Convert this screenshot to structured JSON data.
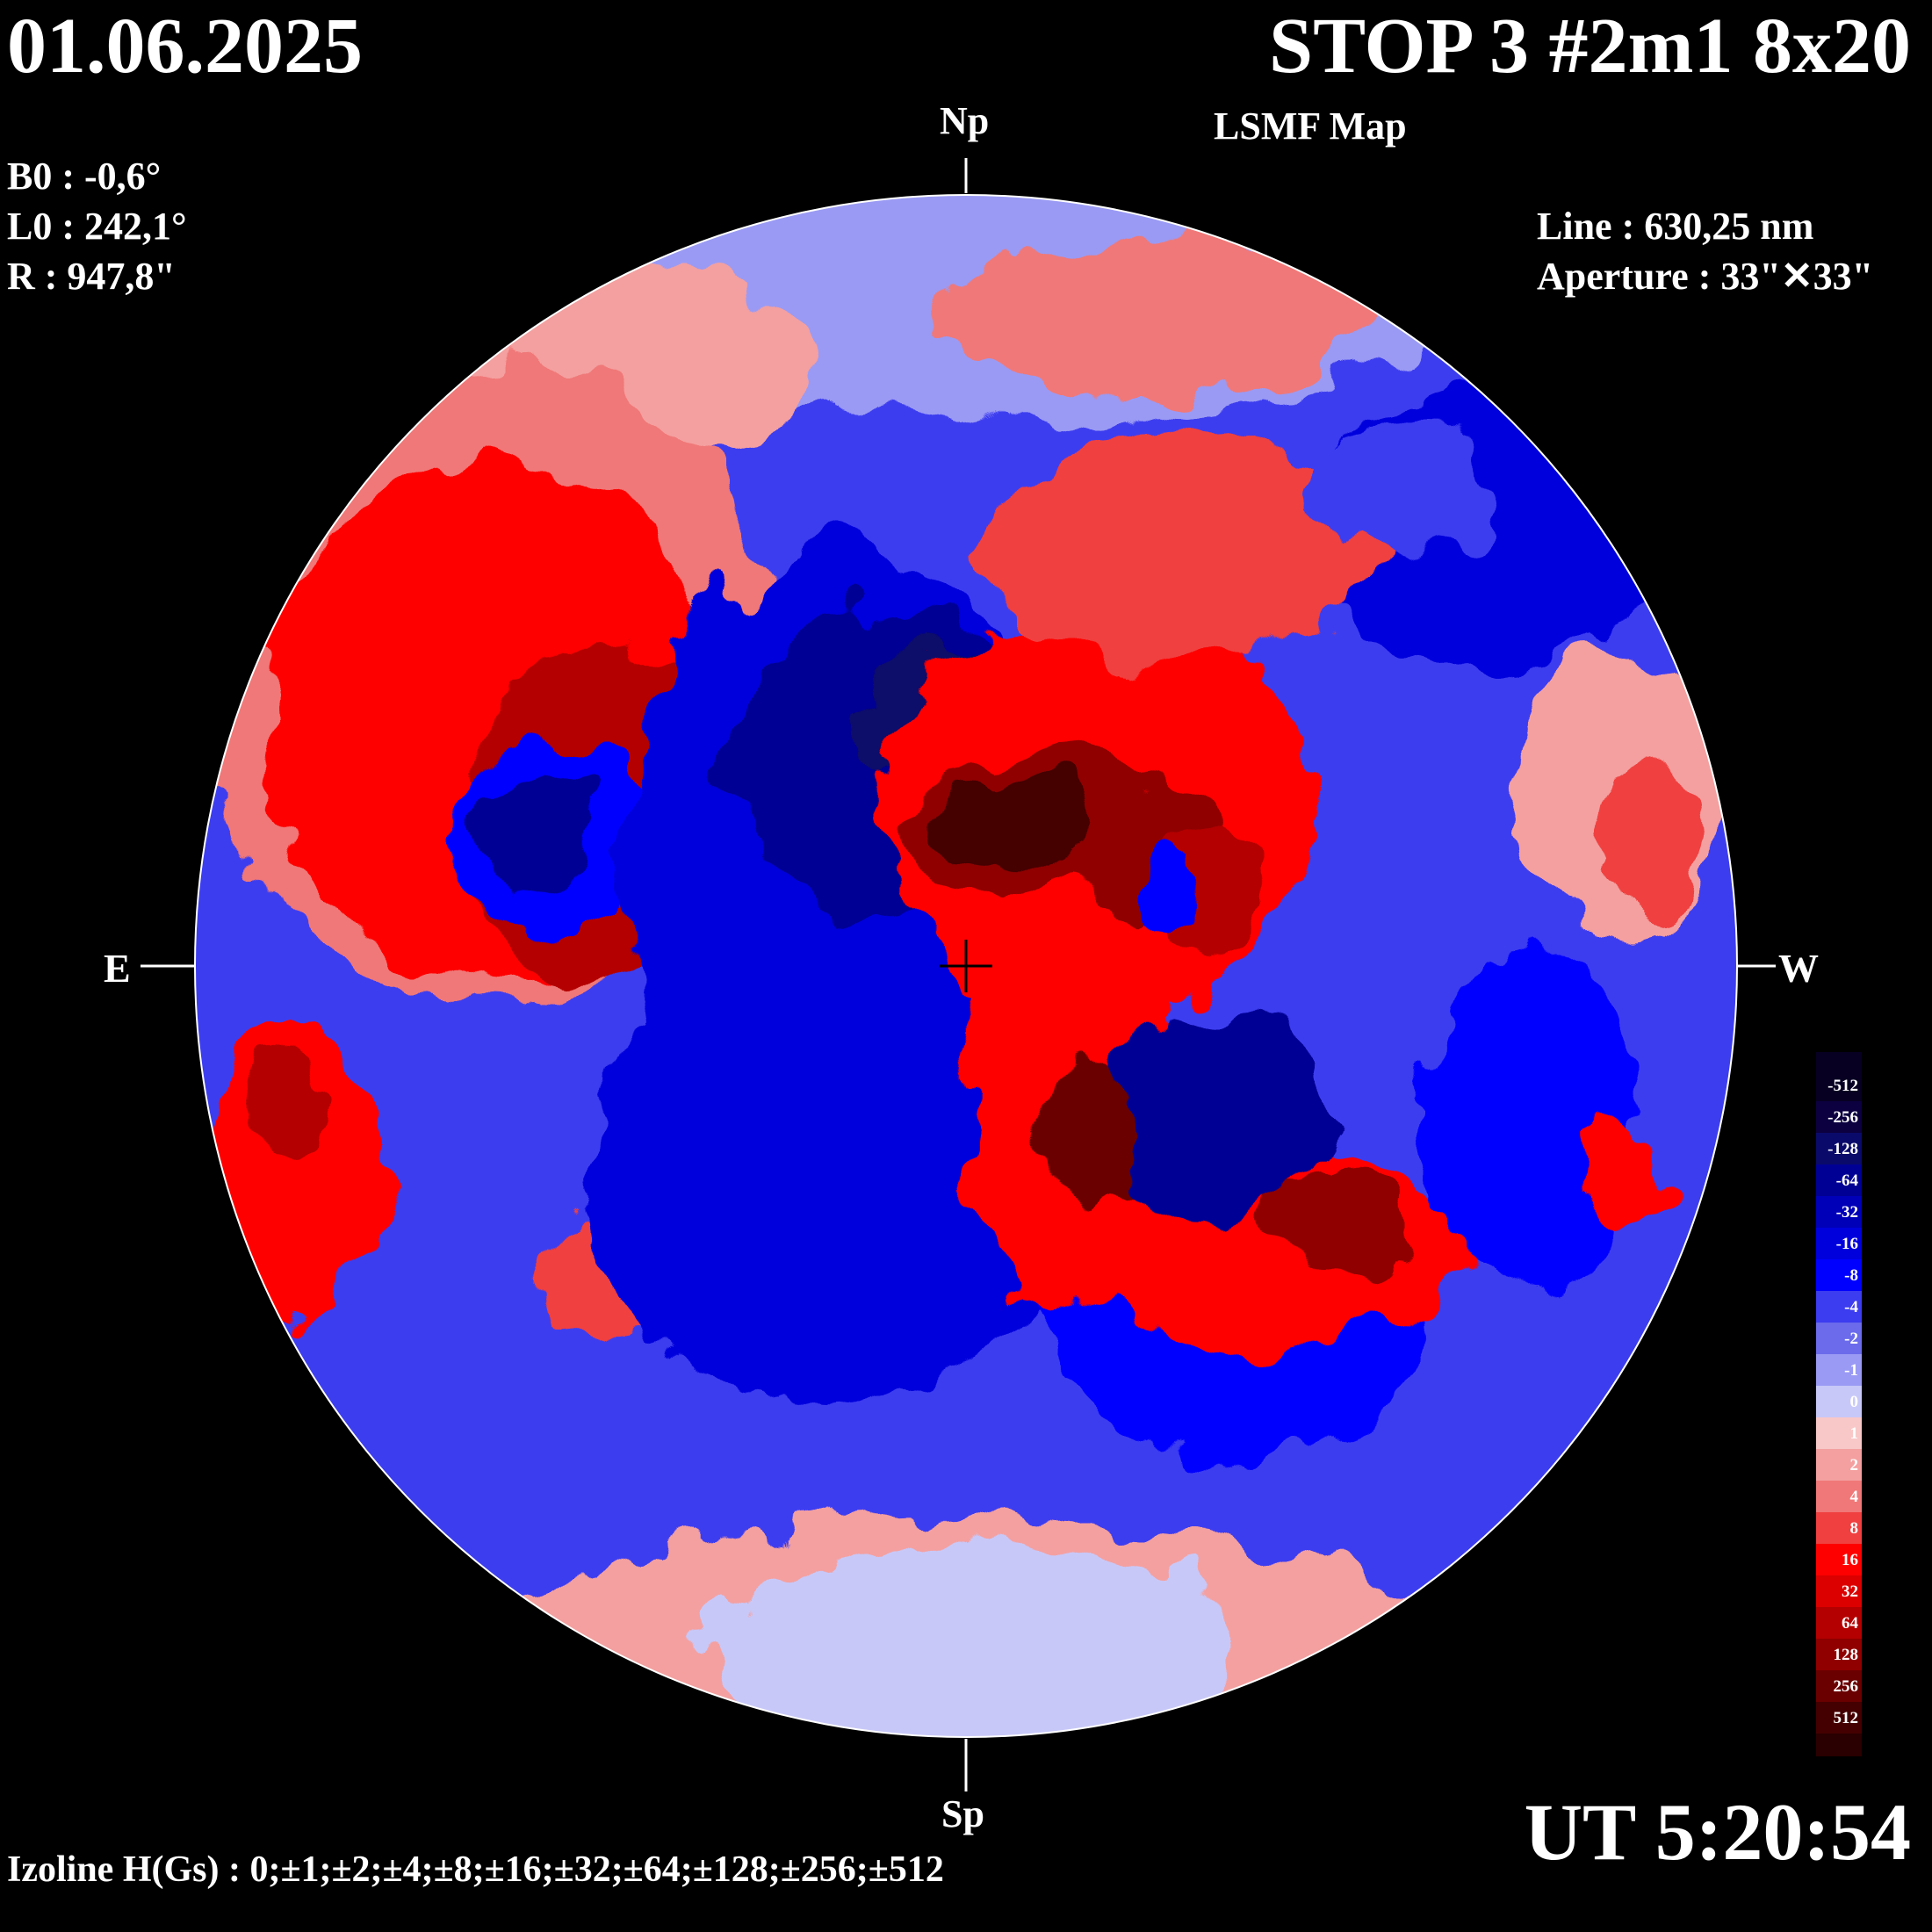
{
  "header": {
    "date": "01.06.2025",
    "title": "STOP 3 #2m1 8x20",
    "subtitle": "LSMF  Map"
  },
  "observation": {
    "b0": "B0 : -0,6°",
    "l0": "L0 : 242,1°",
    "radius": "R  : 947,8\"",
    "line": "Line :  630,25 nm",
    "aperture": "Aperture : 33\"✕33\""
  },
  "directions": {
    "north": "Np",
    "south": "Sp",
    "east": "E",
    "west": "W"
  },
  "footer": {
    "ut": "UT 5:20:54",
    "izoline": "Izoline H(Gs) : 0;±1;±2;±4;±8;±16;±32;±64;±128;±256;±512"
  },
  "legend": {
    "levels": [
      {
        "label": "-512",
        "color": "#070022"
      },
      {
        "label": "-256",
        "color": "#0c0040"
      },
      {
        "label": "-128",
        "color": "#0a0a6a"
      },
      {
        "label": "-64",
        "color": "#000094"
      },
      {
        "label": "-32",
        "color": "#0000b8"
      },
      {
        "label": "-16",
        "color": "#0000dc"
      },
      {
        "label": "-8",
        "color": "#0000ff"
      },
      {
        "label": "-4",
        "color": "#3c3cf0"
      },
      {
        "label": "-2",
        "color": "#6b6bec"
      },
      {
        "label": "-1",
        "color": "#9a9af4"
      },
      {
        "label": "0",
        "color": "#c8c8f8"
      },
      {
        "label": "1",
        "color": "#f8c8c8"
      },
      {
        "label": "2",
        "color": "#f4a0a0"
      },
      {
        "label": "4",
        "color": "#f07878"
      },
      {
        "label": "8",
        "color": "#f04040"
      },
      {
        "label": "16",
        "color": "#ff0000"
      },
      {
        "label": "32",
        "color": "#dc0000"
      },
      {
        "label": "64",
        "color": "#b40000"
      },
      {
        "label": "128",
        "color": "#900000"
      },
      {
        "label": "256",
        "color": "#6a0000"
      },
      {
        "label": "512",
        "color": "#440000"
      }
    ],
    "bottom_color": "#2a0000"
  }
}
